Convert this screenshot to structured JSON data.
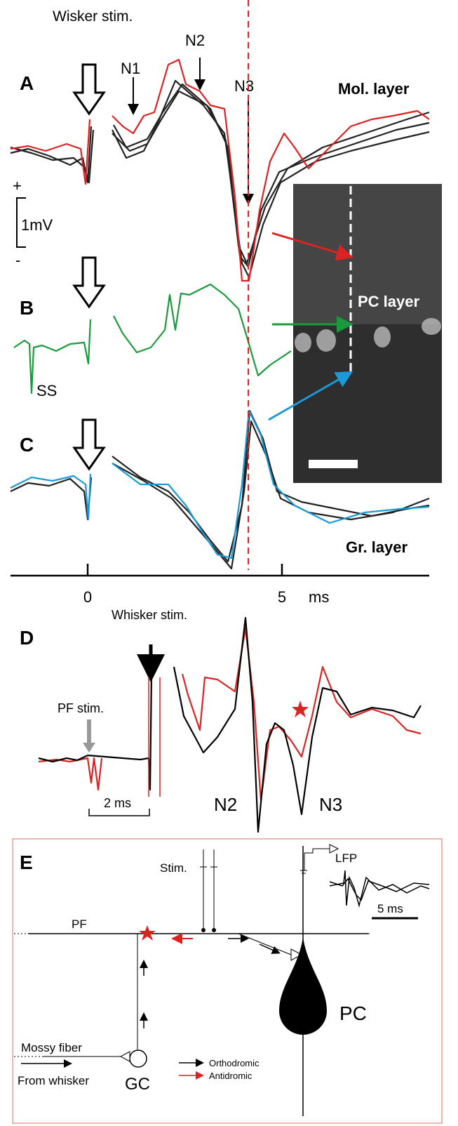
{
  "panel_a": {
    "label": "A",
    "stim": "Wisker stim.",
    "n1": "N1",
    "n2": "N2",
    "n3": "N3",
    "layer": "Mol. layer",
    "scale_plus": "+",
    "scale": "1mV",
    "scale_minus": "-"
  },
  "panel_b": {
    "label": "B",
    "layer": "PC layer",
    "ss": "SS"
  },
  "panel_c": {
    "label": "C",
    "layer": "Gr. layer",
    "axis": {
      "tick0": "0",
      "tick5": "5",
      "unit": "ms"
    }
  },
  "panel_d": {
    "label": "D",
    "whisker": "Whisker stim.",
    "pf": "PF stim.",
    "scale": "2 ms",
    "n2": "N2",
    "n3": "N3"
  },
  "panel_e": {
    "label": "E",
    "stim": "Stim.",
    "lfp": "LFP",
    "scale": "5 ms",
    "pf": "PF",
    "mossy": "Mossy fiber",
    "from": "From whisker",
    "gc": "GC",
    "pc": "PC",
    "legend": [
      "Orthodromic",
      "Antidromic"
    ]
  }
}
